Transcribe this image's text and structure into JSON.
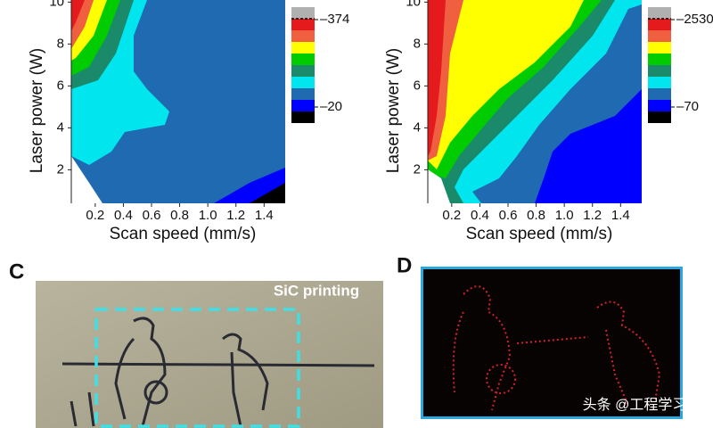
{
  "panels": [
    {
      "xlabel": "Scan speed (mm/s)",
      "ylabel": "Laser power (W)",
      "xlim": [
        0.03,
        1.55
      ],
      "ylim": [
        0.4,
        10.1
      ],
      "xticks": [
        0.2,
        0.4,
        0.6,
        0.8,
        {
          "value": 1,
          "label": "1.0"
        },
        1.2,
        1.4
      ],
      "yticks": [
        2,
        4,
        6,
        8,
        10
      ],
      "colorbar_labels": [
        "–374",
        "–20"
      ]
    },
    {
      "xlabel": "Scan speed (mm/s)",
      "ylabel": "Laser power (W)",
      "xlim": [
        0.03,
        1.55
      ],
      "ylim": [
        0.4,
        10.1
      ],
      "xticks": [
        0.2,
        0.4,
        0.6,
        0.8,
        {
          "value": 1,
          "label": "1.0"
        },
        1.2,
        1.4
      ],
      "yticks": [
        2,
        4,
        6,
        8,
        10
      ],
      "colorbar_labels": [
        "–2530",
        "–70"
      ]
    }
  ],
  "panel_c": {
    "letter": "C",
    "caption": "SiC printing"
  },
  "panel_d": {
    "letter": "D"
  },
  "watermark": "头条 @工程学习"
}
